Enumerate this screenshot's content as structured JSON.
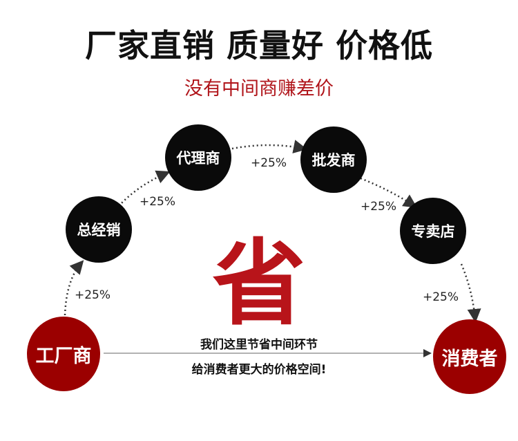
{
  "header": {
    "title": "厂家直销 质量好 价格低",
    "subtitle": "没有中间商赚差价"
  },
  "nodes": [
    {
      "label": "工厂商",
      "color": "#9b0000"
    },
    {
      "label": "总经销",
      "color": "#0a0a0a"
    },
    {
      "label": "代理商",
      "color": "#0a0a0a"
    },
    {
      "label": "批发商",
      "color": "#0a0a0a"
    },
    {
      "label": "专卖店",
      "color": "#0a0a0a"
    },
    {
      "label": "消费者",
      "color": "#9b0000"
    }
  ],
  "markups": [
    "+25%",
    "+25%",
    "+25%",
    "+25%",
    "+25%"
  ],
  "center_char": "省",
  "message": {
    "line1": "我们这里节省中间环节",
    "line2": "给消费者更大的价格空间!"
  }
}
